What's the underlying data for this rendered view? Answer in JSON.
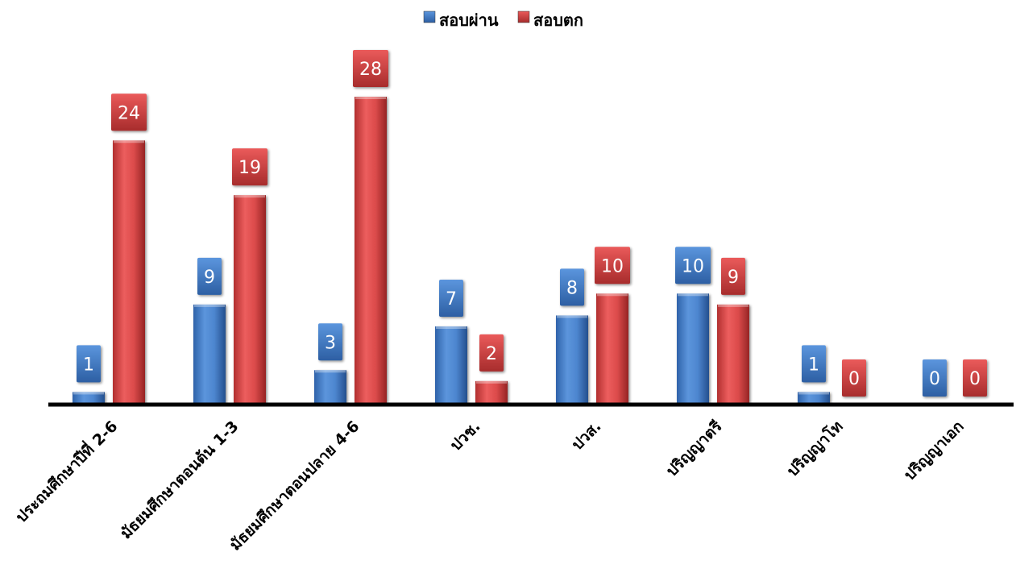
{
  "chart_data": {
    "type": "bar",
    "categories": [
      "ประถมศึกษาปีที่ 2-6",
      "มัธยมศึกษาตอนต้น 1-3",
      "มัธยมศึกษาตอนปลาย 4-6",
      "ปวช.",
      "ปวส.",
      "ปริญญาตรี",
      "ปริญญาโท",
      "ปริญญาเอก"
    ],
    "series": [
      {
        "name": "สอบผ่าน",
        "values": [
          1,
          9,
          3,
          7,
          8,
          10,
          1,
          0
        ],
        "color": "#4a80c8"
      },
      {
        "name": "สอบตก",
        "values": [
          24,
          19,
          28,
          2,
          10,
          9,
          0,
          0
        ],
        "color": "#d64545"
      }
    ],
    "ylim": [
      0,
      32
    ],
    "legend": {
      "position": "top-center"
    },
    "grid": false,
    "data_labels": true
  }
}
